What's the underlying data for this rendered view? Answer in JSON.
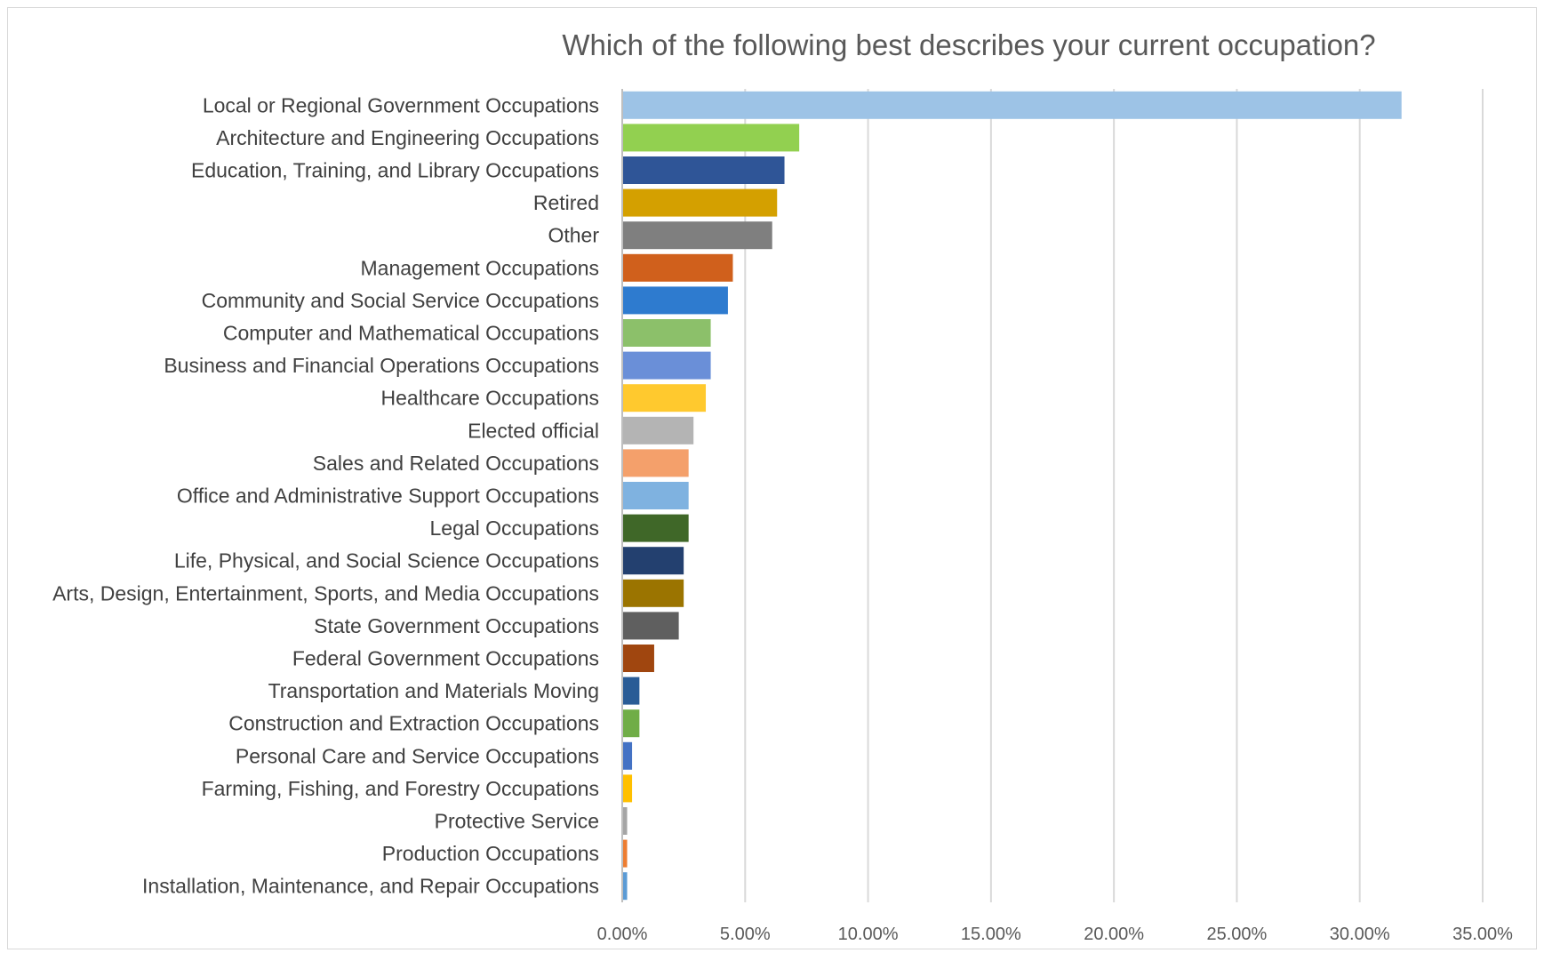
{
  "chart_data": {
    "type": "bar",
    "orientation": "horizontal",
    "title": "Which of the following best describes your current occupation?",
    "xlabel": "",
    "ylabel": "",
    "xlim": [
      0,
      0.35
    ],
    "x_ticks": [
      0,
      0.05,
      0.1,
      0.15,
      0.2,
      0.25,
      0.3,
      0.35
    ],
    "x_tick_labels": [
      "0.00%",
      "5.00%",
      "10.00%",
      "15.00%",
      "20.00%",
      "25.00%",
      "30.00%",
      "35.00%"
    ],
    "grid": true,
    "legend": "none",
    "categories": [
      "Local or Regional Government Occupations",
      "Architecture and Engineering Occupations",
      "Education, Training, and Library Occupations",
      "Retired",
      "Other",
      "Management Occupations",
      "Community and Social Service Occupations",
      "Computer and Mathematical Occupations",
      "Business and Financial Operations Occupations",
      "Healthcare Occupations",
      "Elected official",
      "Sales and Related Occupations",
      "Office and Administrative Support Occupations",
      "Legal Occupations",
      "Life, Physical, and Social Science Occupations",
      "Arts, Design, Entertainment, Sports, and Media Occupations",
      "State Government Occupations",
      "Federal Government Occupations",
      "Transportation and Materials Moving",
      "Construction and Extraction Occupations",
      "Personal Care and Service Occupations",
      "Farming, Fishing, and Forestry Occupations",
      "Protective Service",
      "Production Occupations",
      "Installation, Maintenance, and Repair Occupations"
    ],
    "values": [
      0.317,
      0.072,
      0.066,
      0.063,
      0.061,
      0.045,
      0.043,
      0.036,
      0.036,
      0.034,
      0.029,
      0.027,
      0.027,
      0.027,
      0.025,
      0.025,
      0.023,
      0.013,
      0.007,
      0.007,
      0.004,
      0.004,
      0.002,
      0.002,
      0.002
    ],
    "colors": [
      "#9dc3e6",
      "#92d050",
      "#2f5597",
      "#d4a000",
      "#7f7f7f",
      "#d0601c",
      "#2e7bcf",
      "#8cc06a",
      "#6a8fd8",
      "#ffc92e",
      "#b4b4b4",
      "#f4a06b",
      "#7fb2e0",
      "#3f6728",
      "#23406f",
      "#9b7400",
      "#5f5f5f",
      "#a0460f",
      "#2a5c96",
      "#70ad47",
      "#4472c4",
      "#ffc000",
      "#a5a5a5",
      "#ed7d31",
      "#5b9bd5"
    ]
  }
}
